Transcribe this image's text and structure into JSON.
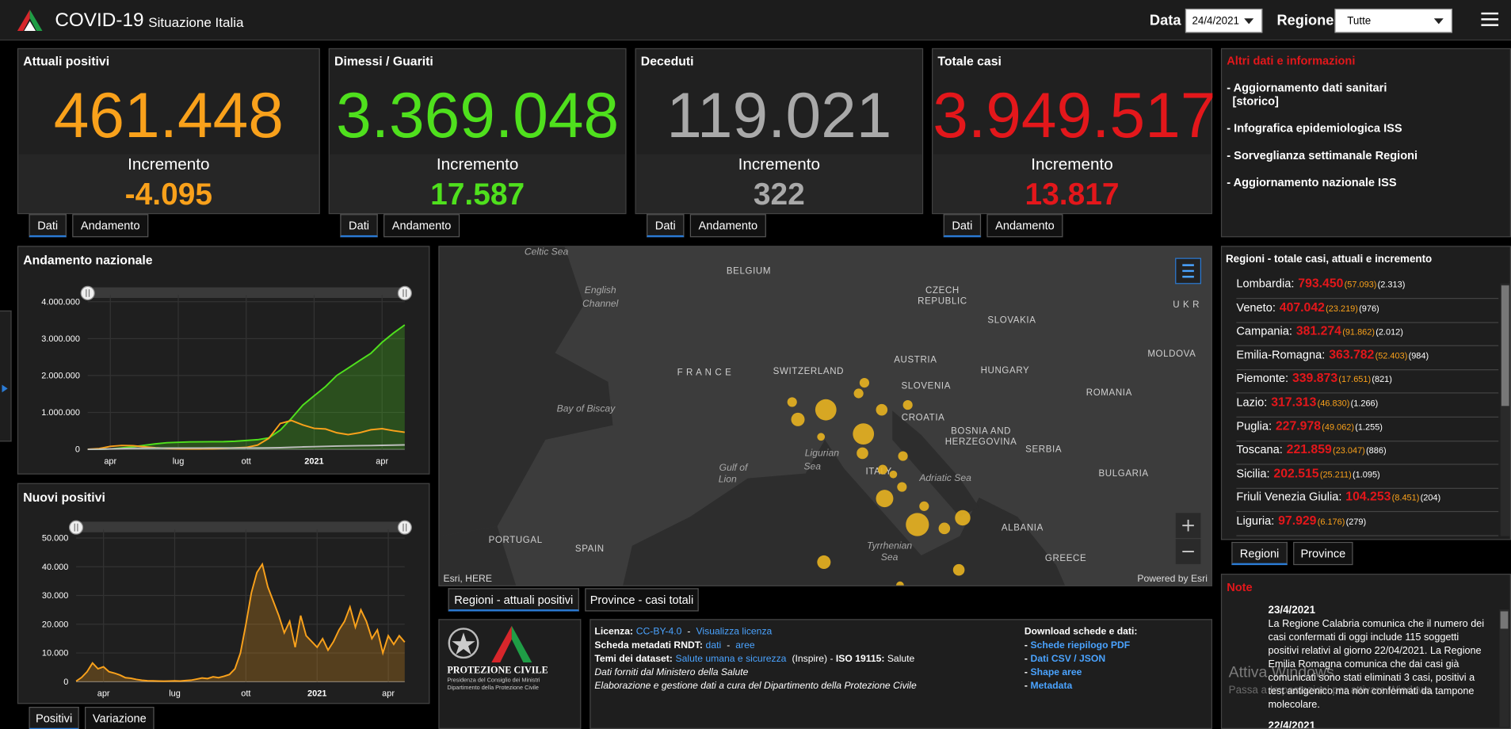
{
  "header": {
    "title": "COVID-19",
    "subtitle": "Situazione Italia",
    "date_label": "Data",
    "date_value": "24/4/2021",
    "region_label": "Regione",
    "region_value": "Tutte"
  },
  "kpis": [
    {
      "label": "Attuali positivi",
      "value": "461.448",
      "increment_label": "Incremento",
      "increment": "-4.095",
      "color": "#f9a11b",
      "tabs": [
        "Dati",
        "Andamento"
      ]
    },
    {
      "label": "Dimessi / Guariti",
      "value": "3.369.048",
      "increment_label": "Incremento",
      "increment": "17.587",
      "color": "#4fe01d",
      "tabs": [
        "Dati",
        "Andamento"
      ]
    },
    {
      "label": "Deceduti",
      "value": "119.021",
      "increment_label": "Incremento",
      "increment": "322",
      "color": "#a9a9a9",
      "tabs": [
        "Dati",
        "Andamento"
      ]
    },
    {
      "label": "Totale casi",
      "value": "3.949.517",
      "increment_label": "Incremento",
      "increment": "13.817",
      "color": "#e3171b",
      "tabs": [
        "Dati",
        "Andamento"
      ]
    }
  ],
  "info": {
    "title": "Altri dati e informazioni",
    "storico": "[storico]",
    "links": [
      "- Aggiornamento dati sanitari",
      "- Infografica epidemiologica ISS",
      "- Sorveglianza settimanale Regioni",
      "- Aggiornamento nazionale ISS"
    ]
  },
  "charts": {
    "andamento": {
      "type": "line",
      "title": "Andamento nazionale",
      "xlim": [
        0,
        28
      ],
      "xticks": [
        {
          "value": 2,
          "label": "apr"
        },
        {
          "value": 8,
          "label": "lug"
        },
        {
          "value": 14,
          "label": "ott"
        },
        {
          "value": 20,
          "label": "2021"
        },
        {
          "value": 26,
          "label": "apr"
        }
      ],
      "ylim": [
        0,
        4180000
      ],
      "yticks": [
        0,
        {
          "value": 1000000,
          "label": "1.000.000"
        },
        {
          "value": 2000000,
          "label": "2.000.000"
        },
        {
          "value": 3000000,
          "label": "3.000.000"
        },
        {
          "value": 4000000,
          "label": "4.000.000"
        }
      ],
      "series": [
        {
          "color": "#4fe01d",
          "fill": true,
          "values": [
            50,
            2000,
            10000,
            40000,
            70000,
            110000,
            150000,
            180000,
            190000,
            200000,
            203000,
            207000,
            210000,
            220000,
            240000,
            260000,
            310000,
            520000,
            840000,
            1200000,
            1450000,
            1700000,
            2000000,
            2200000,
            2400000,
            2600000,
            2900000,
            3150000,
            3369048
          ]
        },
        {
          "color": "#f9a11b",
          "fill": false,
          "values": [
            1500,
            20000,
            80000,
            105000,
            100000,
            70000,
            42000,
            25000,
            15000,
            13000,
            12000,
            16000,
            27000,
            40000,
            53000,
            116000,
            300000,
            700000,
            780000,
            660000,
            570000,
            550000,
            450000,
            400000,
            450000,
            530000,
            560000,
            505000,
            461448
          ]
        },
        {
          "color": "#bdbdbd",
          "fill": false,
          "values": [
            30,
            2000,
            13000,
            22000,
            28000,
            31000,
            33000,
            34000,
            35000,
            35000,
            35200,
            35400,
            35500,
            35700,
            36000,
            36500,
            38600,
            45000,
            55000,
            65000,
            74000,
            81000,
            88000,
            93000,
            98000,
            103000,
            110000,
            115000,
            119021
          ]
        }
      ]
    },
    "nuovi": {
      "type": "area",
      "title": "Nuovi positivi",
      "tabs": [
        "Positivi",
        "Variazione"
      ],
      "xlim": [
        0,
        60
      ],
      "xticks": [
        {
          "value": 5,
          "label": "apr"
        },
        {
          "value": 18,
          "label": "lug"
        },
        {
          "value": 31,
          "label": "ott"
        },
        {
          "value": 44,
          "label": "2021"
        },
        {
          "value": 57,
          "label": "apr"
        }
      ],
      "ylim": [
        0,
        53000
      ],
      "yticks": [
        0,
        {
          "value": 10000,
          "label": "10.000"
        },
        {
          "value": 20000,
          "label": "20.000"
        },
        {
          "value": 30000,
          "label": "30.000"
        },
        {
          "value": 40000,
          "label": "40.000"
        },
        {
          "value": 50000,
          "label": "50.000"
        }
      ],
      "series": [
        {
          "color": "#f9a11b",
          "fill": true,
          "values": [
            200,
            1500,
            3500,
            6500,
            4500,
            5200,
            3500,
            3000,
            2300,
            1400,
            1200,
            800,
            500,
            350,
            300,
            250,
            200,
            250,
            300,
            250,
            400,
            550,
            900,
            1300,
            1100,
            1700,
            1400,
            1900,
            2500,
            4500,
            10000,
            20000,
            31000,
            38000,
            40900,
            33000,
            28000,
            23000,
            17000,
            21000,
            12000,
            23000,
            16000,
            14000,
            12000,
            15000,
            11000,
            14000,
            18000,
            21000,
            26000,
            19000,
            25000,
            21000,
            15000,
            18000,
            10000,
            16000,
            13000,
            16000,
            13800
          ]
        }
      ]
    }
  },
  "map": {
    "labels": [
      "Celtic Sea",
      "English",
      "Channel",
      "BELGIUM",
      "CZECH",
      "REPUBLIC",
      "SLOVAKIA",
      "U K R",
      "F R A N C E",
      "SWITZERLAND",
      "AUSTRIA",
      "HUNGARY",
      "MOLDOVA",
      "SLOVENIA",
      "CROATIA",
      "ROMANIA",
      "Bay of Biscay",
      "BOSNIA AND",
      "HERZEGOVINA",
      "SERBIA",
      "Ligurian",
      "Sea",
      "Gulf of",
      "Lion",
      "ITALY",
      "Adriatic Sea",
      "BULGARIA",
      "ALBANIA",
      "PORTUGAL",
      "SPAIN",
      "Tyrrhenian",
      "Sea",
      "GREECE"
    ],
    "attribution": "Esri, HERE",
    "powered": "Powered by Esri",
    "tabs": [
      "Regioni - attuali positivi",
      "Province - casi totali"
    ]
  },
  "footer": {
    "logo_title": "PROTEZIONE CIVILE",
    "logo_lines": [
      "Presidenza del Consiglio dei Ministri",
      "Dipartimento della Protezione Civile"
    ],
    "lines": [
      [
        {
          "text": "Licenza:",
          "style": "b"
        },
        {
          "text": "CC-BY-4.0",
          "style": "a"
        },
        {
          "text": " - ",
          "style": "n"
        },
        {
          "text": "Visualizza licenza",
          "style": "a"
        }
      ],
      [
        {
          "text": "Scheda metadati RNDT:",
          "style": "b"
        },
        {
          "text": "dati",
          "style": "a"
        },
        {
          "text": " - ",
          "style": "n"
        },
        {
          "text": "aree",
          "style": "a"
        }
      ],
      [
        {
          "text": "Temi dei dataset:",
          "style": "b"
        },
        {
          "text": "Salute umana e sicurezza",
          "style": "a"
        },
        {
          "text": " (Inspire) - ",
          "style": "n"
        },
        {
          "text": "ISO 19115:",
          "style": "b"
        },
        {
          "text": " Salute",
          "style": "n"
        }
      ],
      [
        {
          "text": "Dati forniti dal Ministero della Salute",
          "style": "i"
        }
      ],
      [
        {
          "text": "Elaborazione e gestione dati a cura del Dipartimento della Protezione Civile",
          "style": "i"
        }
      ]
    ],
    "download_title": "Download schede e dati:",
    "bullet": "-",
    "downloads": [
      "Schede riepilogo PDF",
      "Dati CSV / JSON",
      "Shape aree",
      "Metadata"
    ]
  },
  "regions": {
    "title": "Regioni - totale casi, attuali e incremento",
    "tabs": [
      "Regioni",
      "Province"
    ],
    "rows": [
      [
        "Lombardia:",
        "793.450",
        "(57.093)",
        "(2.313)"
      ],
      [
        "Veneto:",
        "407.042",
        "(23.219)",
        "(976)"
      ],
      [
        "Campania:",
        "381.274",
        "(91.862)",
        "(2.012)"
      ],
      [
        "Emilia-Romagna:",
        "363.782",
        "(52.403)",
        "(984)"
      ],
      [
        "Piemonte:",
        "339.873",
        "(17.651)",
        "(821)"
      ],
      [
        "Lazio:",
        "317.313",
        "(46.830)",
        "(1.266)"
      ],
      [
        "Puglia:",
        "227.978",
        "(49.062)",
        "(1.255)"
      ],
      [
        "Toscana:",
        "221.859",
        "(23.047)",
        "(886)"
      ],
      [
        "Sicilia:",
        "202.515",
        "(25.211)",
        "(1.095)"
      ],
      [
        "Friuli Venezia Giulia:",
        "104.253",
        "(8.451)",
        "(204)"
      ],
      [
        "Liguria:",
        "97.929",
        "(6.176)",
        "(279)"
      ]
    ]
  },
  "notes": {
    "title": "Note",
    "items": [
      {
        "date": "23/4/2021",
        "text": "La Regione Calabria comunica che il numero dei casi confermati di oggi include 115 soggetti positivi relativi al giorno 22/04/2021. La Regione Emilia Romagna comunica che dai casi già comunicati sono stati eliminati 3 casi, positivi a test antigenico ma non confermati da tampone molecolare."
      },
      {
        "date": "22/4/2021"
      }
    ]
  },
  "watermark": {
    "title": "Attiva Windows",
    "text": "Passa a Impostazioni per attivare Windows."
  }
}
